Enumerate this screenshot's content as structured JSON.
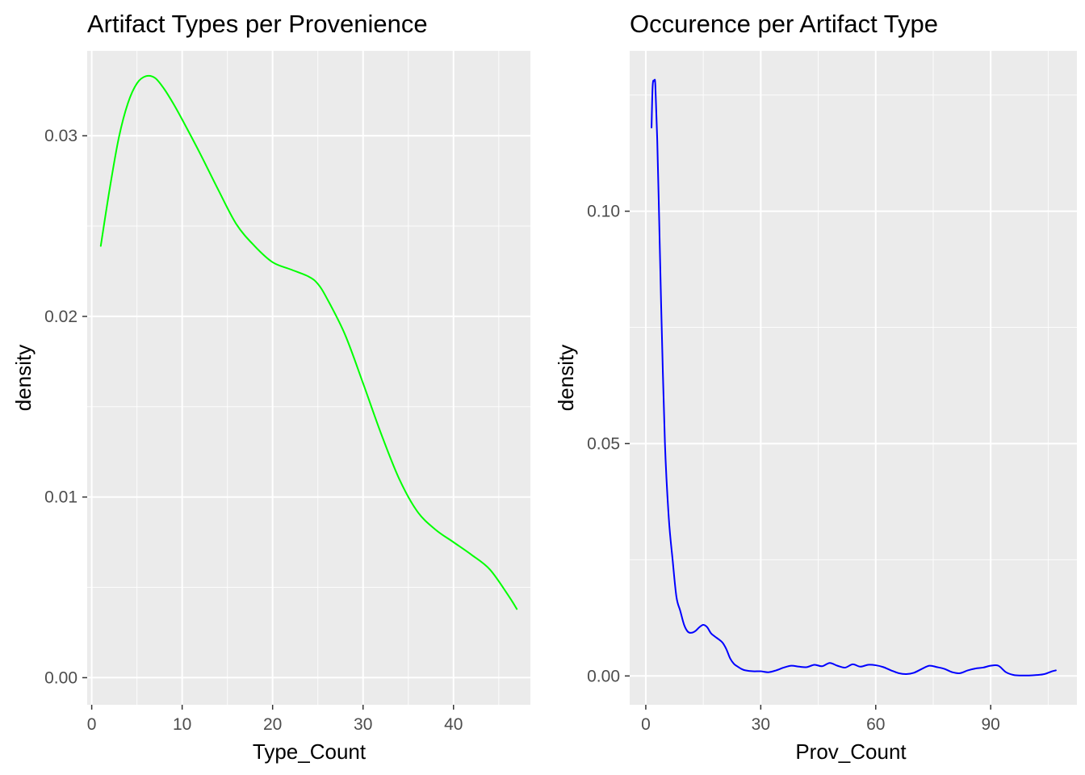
{
  "chart_data": [
    {
      "type": "line",
      "title": "Artifact Types per Provenience",
      "xlabel": "Type_Count",
      "ylabel": "density",
      "xlim": [
        -0.5,
        48.5
      ],
      "ylim": [
        -0.0015,
        0.0347
      ],
      "x_ticks": [
        0,
        10,
        20,
        30,
        40
      ],
      "x_tick_labels": [
        "0",
        "10",
        "20",
        "30",
        "40"
      ],
      "y_ticks": [
        0,
        0.01,
        0.02,
        0.03
      ],
      "y_tick_labels": [
        "0.00",
        "0.01",
        "0.02",
        "0.03"
      ],
      "grid": true,
      "legend": "none",
      "line_color": "#00ff00",
      "series": [
        {
          "x": [
            1,
            2,
            3,
            4,
            5,
            6,
            7,
            8,
            9,
            10,
            12,
            14,
            16,
            18,
            20,
            22,
            24,
            25,
            26,
            28,
            30,
            32,
            34,
            36,
            38,
            40,
            42,
            44,
            46,
            47
          ],
          "y": [
            0.0239,
            0.0271,
            0.0299,
            0.0318,
            0.0329,
            0.0333,
            0.0332,
            0.0326,
            0.0318,
            0.0309,
            0.029,
            0.027,
            0.0251,
            0.0239,
            0.023,
            0.0226,
            0.0222,
            0.0218,
            0.021,
            0.019,
            0.0163,
            0.0135,
            0.011,
            0.0092,
            0.0082,
            0.0075,
            0.0068,
            0.006,
            0.0046,
            0.0038
          ]
        }
      ]
    },
    {
      "type": "line",
      "title": "Occurence per Artifact Type",
      "xlabel": "Prov_Count",
      "ylabel": "density",
      "xlim": [
        -4.2,
        112.5
      ],
      "ylim": [
        -0.0062,
        0.1345
      ],
      "x_ticks": [
        0,
        30,
        60,
        90
      ],
      "x_tick_labels": [
        "0",
        "30",
        "60",
        "90"
      ],
      "y_ticks": [
        0,
        0.05,
        0.1
      ],
      "y_tick_labels": [
        "0.00",
        "0.05",
        "0.10"
      ],
      "grid": true,
      "legend": "none",
      "line_color": "#0000ff",
      "series": [
        {
          "x": [
            1.5,
            1.8,
            2.2,
            2.5,
            3,
            3.5,
            4,
            5,
            6,
            7,
            8,
            9,
            10,
            11,
            12,
            13,
            14,
            15,
            16,
            17,
            18,
            19,
            20,
            21,
            22,
            23,
            24,
            25,
            26,
            28,
            30,
            32,
            34,
            36,
            38,
            40,
            42,
            44,
            46,
            48,
            50,
            52,
            54,
            56,
            58,
            60,
            62,
            64,
            66,
            68,
            70,
            72,
            74,
            76,
            78,
            80,
            82,
            84,
            86,
            88,
            90,
            92,
            94,
            96,
            98,
            100,
            102,
            104,
            106,
            107
          ],
          "y": [
            0.118,
            0.127,
            0.128,
            0.127,
            0.115,
            0.098,
            0.08,
            0.05,
            0.034,
            0.025,
            0.017,
            0.014,
            0.011,
            0.0095,
            0.0093,
            0.0097,
            0.0105,
            0.011,
            0.0105,
            0.0092,
            0.0085,
            0.0079,
            0.0072,
            0.0058,
            0.0038,
            0.0026,
            0.002,
            0.0015,
            0.0012,
            0.001,
            0.001,
            0.0008,
            0.0012,
            0.0018,
            0.0022,
            0.002,
            0.0019,
            0.0024,
            0.0021,
            0.0028,
            0.0022,
            0.0018,
            0.0025,
            0.002,
            0.0024,
            0.0023,
            0.0019,
            0.0012,
            0.0006,
            0.0004,
            0.0007,
            0.0015,
            0.0022,
            0.0019,
            0.0015,
            0.0008,
            0.0006,
            0.0012,
            0.0016,
            0.0018,
            0.0022,
            0.0022,
            0.0008,
            0.0002,
            0.0001,
            0.0001,
            0.0002,
            0.0004,
            0.001,
            0.0012
          ]
        }
      ]
    }
  ]
}
